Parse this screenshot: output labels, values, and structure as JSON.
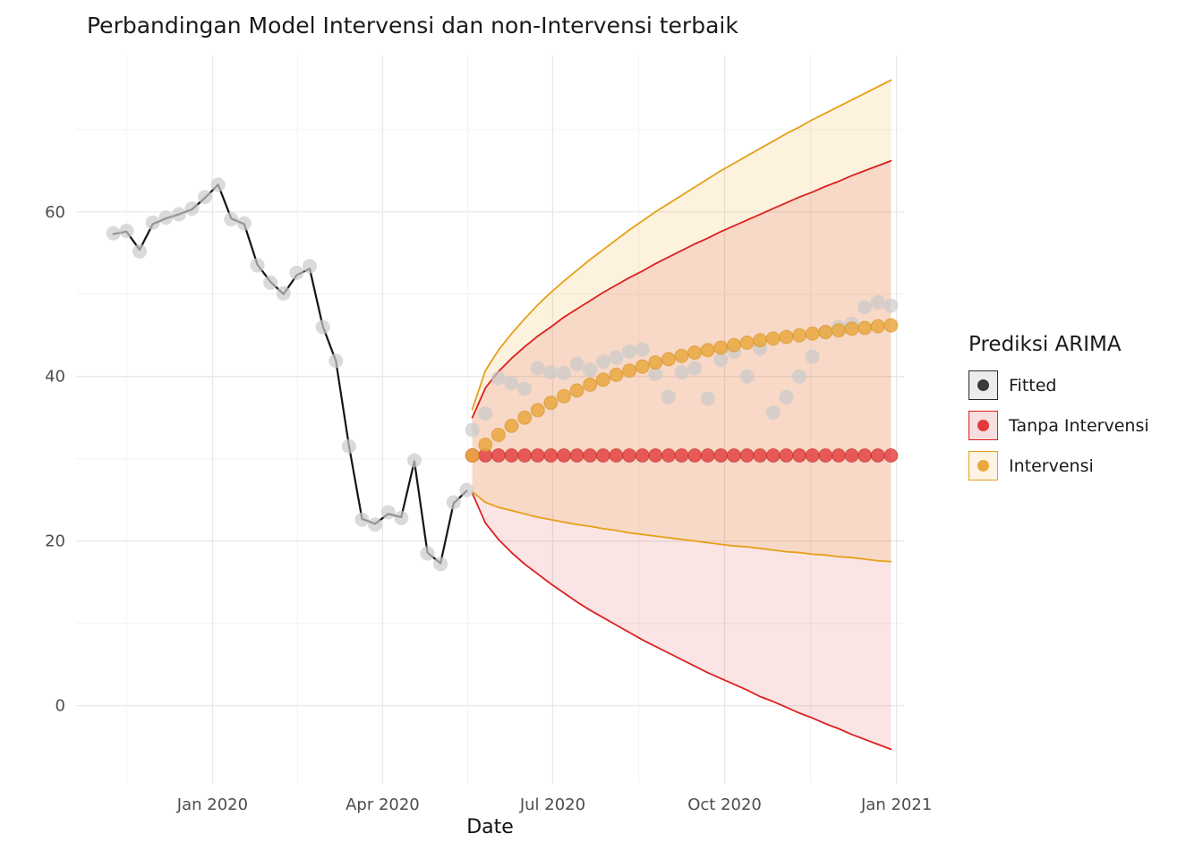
{
  "chart_data": {
    "type": "line",
    "title": "Perbandingan Model Intervensi dan non-Intervensi terbaik",
    "xlabel": "Date",
    "ylabel": "",
    "x_unit": "days since 2019-11-01",
    "x_domain": [
      -12,
      431
    ],
    "y_domain": [
      -9.5,
      79
    ],
    "grid": true,
    "x_ticks": [
      {
        "day": 61,
        "label": "Jan 2020"
      },
      {
        "day": 152,
        "label": "Apr 2020"
      },
      {
        "day": 243,
        "label": "Jul 2020"
      },
      {
        "day": 335,
        "label": "Oct 2020"
      },
      {
        "day": 427,
        "label": "Jan 2021"
      }
    ],
    "x_minor_days": [
      15,
      106.5,
      197.5,
      289,
      381
    ],
    "y_ticks": [
      {
        "value": 0,
        "label": "0"
      },
      {
        "value": 20,
        "label": "20"
      },
      {
        "value": 40,
        "label": "40"
      },
      {
        "value": 60,
        "label": "60"
      }
    ],
    "y_minor_values": [
      10,
      30,
      50,
      70
    ],
    "legend": {
      "title": "Prediksi ARIMA",
      "position": "right",
      "entries": [
        {
          "label": "Fitted",
          "fill": "#ECECEC",
          "border": "#2B2B2B",
          "dot": "#3A3A3A"
        },
        {
          "label": "Tanpa Intervensi",
          "fill": "#F8DEDE",
          "border": "#DC2020",
          "dot": "#E23A3A"
        },
        {
          "label": "Intervensi",
          "fill": "#FCF3E2",
          "border": "#E5A017",
          "dot": "#EAA83E"
        }
      ]
    },
    "series": {
      "observed": {
        "label": "observed data points",
        "color": "#CBCBCB",
        "days": [
          8,
          15,
          22,
          29,
          36,
          43,
          50,
          57,
          64,
          71,
          78,
          85,
          92,
          99,
          106,
          113,
          120,
          127,
          134,
          141,
          148,
          155,
          162,
          169,
          176,
          183,
          190,
          197,
          200,
          207,
          214,
          221,
          228,
          235,
          242,
          249,
          256,
          263,
          270,
          277,
          284,
          291,
          298,
          305,
          312,
          319,
          326,
          333,
          340,
          347,
          354,
          361,
          368,
          375,
          382,
          389,
          396,
          403,
          410,
          417,
          424
        ],
        "values": [
          57.4,
          57.7,
          55.2,
          58.7,
          59.3,
          59.7,
          60.4,
          61.8,
          63.3,
          59.1,
          58.6,
          53.5,
          51.4,
          50.1,
          52.6,
          53.4,
          46.0,
          41.9,
          31.5,
          22.6,
          22.0,
          23.5,
          22.8,
          29.8,
          18.5,
          17.2,
          24.7,
          26.2,
          33.5,
          35.5,
          39.8,
          39.2,
          38.5,
          41.0,
          40.5,
          40.4,
          41.5,
          40.8,
          41.8,
          42.3,
          43.0,
          43.3,
          40.3,
          37.5,
          40.5,
          41.0,
          37.3,
          42.0,
          43.0,
          40.0,
          43.4,
          35.6,
          37.5,
          40.0,
          42.4,
          45.4,
          46.0,
          46.4,
          48.4,
          49.0,
          48.6
        ]
      },
      "fitted": {
        "label": "Fitted",
        "color": "#151515",
        "days": [
          8,
          15,
          22,
          29,
          36,
          43,
          50,
          57,
          64,
          71,
          78,
          85,
          92,
          99,
          106,
          113,
          120,
          127,
          134,
          141,
          148,
          155,
          162,
          169,
          176,
          183,
          190,
          197
        ],
        "values": [
          57.3,
          57.6,
          55.4,
          58.5,
          59.2,
          59.7,
          60.3,
          61.7,
          63.3,
          59.2,
          58.5,
          53.6,
          51.5,
          50.0,
          52.3,
          53.1,
          46.1,
          41.9,
          31.6,
          22.7,
          22.1,
          23.3,
          22.9,
          29.7,
          18.6,
          17.3,
          24.6,
          26.1
        ]
      },
      "tanpa_intervensi": {
        "label": "Tanpa Intervensi",
        "line_color": "#DC2020",
        "point_color": "#E23A3A",
        "fill": "rgba(225,45,45,0.13)",
        "days": [
          200,
          207,
          214,
          221,
          228,
          235,
          242,
          249,
          256,
          263,
          270,
          277,
          284,
          291,
          298,
          305,
          312,
          319,
          326,
          333,
          340,
          347,
          354,
          361,
          368,
          375,
          382,
          389,
          396,
          403,
          410,
          417,
          424
        ],
        "mean": [
          30.4,
          30.4,
          30.4,
          30.4,
          30.4,
          30.4,
          30.4,
          30.4,
          30.4,
          30.4,
          30.4,
          30.4,
          30.4,
          30.4,
          30.4,
          30.4,
          30.4,
          30.4,
          30.4,
          30.4,
          30.4,
          30.4,
          30.4,
          30.4,
          30.4,
          30.4,
          30.4,
          30.4,
          30.4,
          30.4,
          30.4,
          30.4,
          30.4
        ],
        "upper": [
          35.0,
          38.6,
          40.6,
          42.2,
          43.6,
          44.9,
          46.0,
          47.2,
          48.2,
          49.2,
          50.2,
          51.1,
          52.0,
          52.8,
          53.7,
          54.5,
          55.3,
          56.1,
          56.8,
          57.6,
          58.3,
          59.0,
          59.7,
          60.4,
          61.1,
          61.8,
          62.4,
          63.1,
          63.7,
          64.4,
          65.0,
          65.6,
          66.2
        ],
        "lower": [
          25.8,
          22.2,
          20.2,
          18.6,
          17.2,
          16.0,
          14.8,
          13.7,
          12.6,
          11.6,
          10.7,
          9.8,
          8.9,
          8.0,
          7.2,
          6.4,
          5.6,
          4.8,
          4.0,
          3.3,
          2.6,
          1.9,
          1.1,
          0.5,
          -0.2,
          -0.9,
          -1.5,
          -2.2,
          -2.8,
          -3.5,
          -4.1,
          -4.7,
          -5.3
        ]
      },
      "intervensi": {
        "label": "Intervensi",
        "line_color": "#E5A017",
        "point_color": "#EAA83E",
        "fill": "rgba(233,166,30,0.15)",
        "days": [
          200,
          207,
          214,
          221,
          228,
          235,
          242,
          249,
          256,
          263,
          270,
          277,
          284,
          291,
          298,
          305,
          312,
          319,
          326,
          333,
          340,
          347,
          354,
          361,
          368,
          375,
          382,
          389,
          396,
          403,
          410,
          417,
          424
        ],
        "mean": [
          30.4,
          31.7,
          32.9,
          34.0,
          35.0,
          35.9,
          36.8,
          37.6,
          38.3,
          39.0,
          39.6,
          40.2,
          40.7,
          41.2,
          41.7,
          42.1,
          42.5,
          42.9,
          43.2,
          43.5,
          43.8,
          44.1,
          44.4,
          44.6,
          44.8,
          45.0,
          45.2,
          45.4,
          45.6,
          45.8,
          45.9,
          46.1,
          46.2
        ],
        "upper": [
          36.0,
          40.7,
          43.2,
          45.2,
          47.0,
          48.7,
          50.2,
          51.6,
          52.9,
          54.2,
          55.4,
          56.6,
          57.8,
          58.9,
          60.0,
          61.0,
          62.0,
          63.0,
          64.0,
          65.0,
          65.9,
          66.8,
          67.7,
          68.6,
          69.5,
          70.3,
          71.2,
          72.0,
          72.8,
          73.6,
          74.4,
          75.2,
          76.0
        ],
        "lower": [
          26.0,
          24.7,
          24.1,
          23.7,
          23.3,
          22.9,
          22.6,
          22.3,
          22.0,
          21.8,
          21.5,
          21.3,
          21.0,
          20.8,
          20.6,
          20.4,
          20.2,
          20.0,
          19.8,
          19.6,
          19.4,
          19.3,
          19.1,
          18.9,
          18.7,
          18.6,
          18.4,
          18.3,
          18.1,
          18.0,
          17.8,
          17.6,
          17.5
        ]
      }
    }
  }
}
